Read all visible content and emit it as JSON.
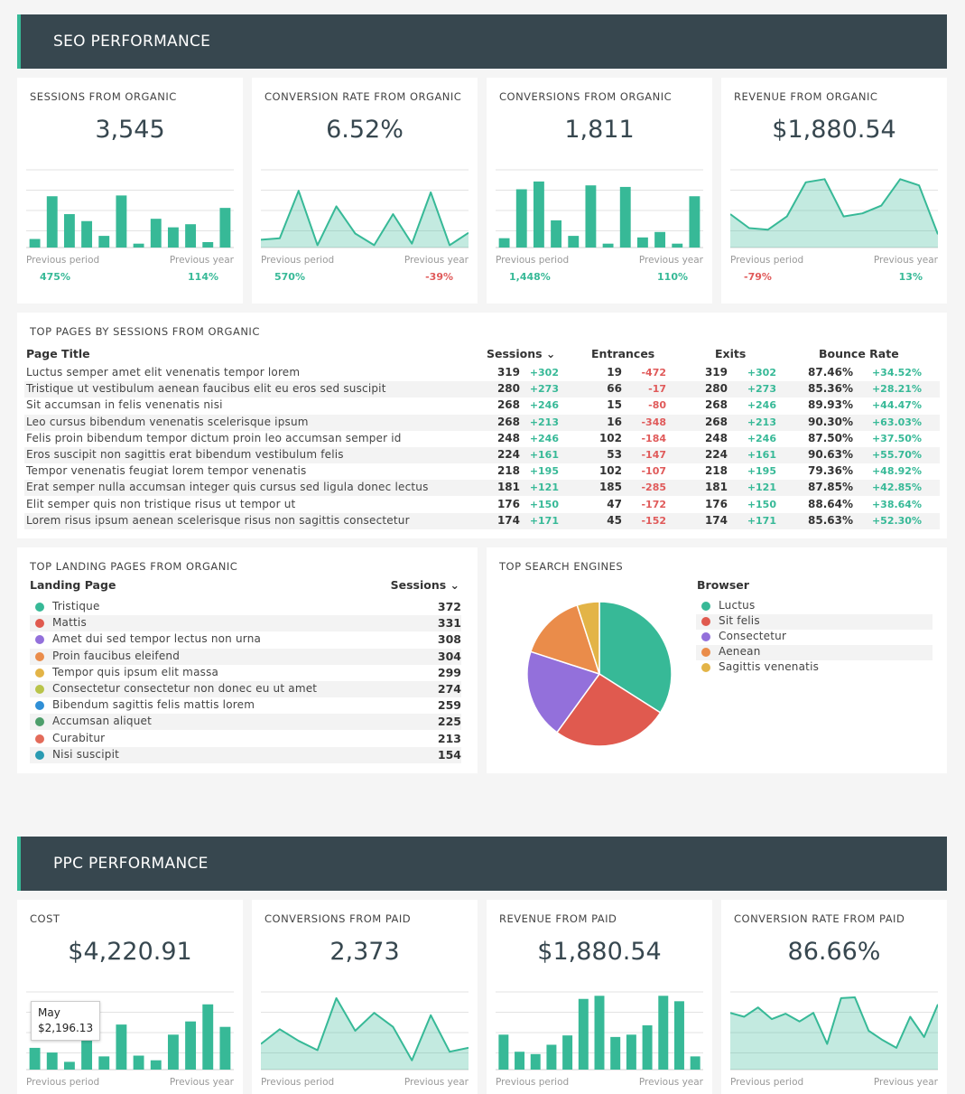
{
  "seo": {
    "header": "SEO PERFORMANCE",
    "kpis": [
      {
        "title": "SESSIONS FROM ORGANIC",
        "value": "3,545",
        "chart": "bar",
        "values": [
          11,
          66,
          43,
          34,
          15,
          67,
          5,
          37,
          26,
          30,
          7,
          51
        ],
        "foot_left": "Previous period",
        "foot_right": "Previous year",
        "pct_left": "475%",
        "pct_right": "114%",
        "pct_left_color": "#37b997",
        "pct_right_color": "#37b997"
      },
      {
        "title": "CONVERSION RATE FROM ORGANIC",
        "value": "6.52%",
        "chart": "area",
        "values": [
          10,
          12,
          73,
          3,
          53,
          18,
          3,
          43,
          5,
          71,
          3,
          19
        ],
        "foot_left": "Previous period",
        "foot_right": "Previous year",
        "pct_left": "570%",
        "pct_right": "-39%",
        "pct_left_color": "#37b997",
        "pct_right_color": "#e05a5a"
      },
      {
        "title": "CONVERSIONS FROM ORGANIC",
        "value": "1,811",
        "chart": "bar",
        "values": [
          12,
          75,
          85,
          35,
          15,
          80,
          5,
          78,
          13,
          20,
          5,
          66
        ],
        "foot_left": "Previous period",
        "foot_right": "Previous year",
        "pct_left": "1,448%",
        "pct_right": "110%",
        "pct_left_color": "#37b997",
        "pct_right_color": "#37b997"
      },
      {
        "title": "REVENUE FROM ORGANIC",
        "value": "$1,880.54",
        "chart": "area",
        "values": [
          43,
          25,
          23,
          40,
          84,
          88,
          40,
          44,
          54,
          88,
          80,
          17
        ],
        "foot_left": "Previous period",
        "foot_right": "Previous year",
        "pct_left": "-79%",
        "pct_right": "13%",
        "pct_left_color": "#e05a5a",
        "pct_right_color": "#37b997"
      }
    ],
    "top_pages": {
      "title": "TOP PAGES BY SESSIONS FROM ORGANIC",
      "columns": [
        "Page Title",
        "Sessions ⌄",
        "Entrances",
        "Exits",
        "Bounce Rate"
      ],
      "rows": [
        [
          "Luctus semper amet elit venenatis tempor lorem",
          "319",
          "+302",
          "19",
          "-472",
          "319",
          "+302",
          "87.46%",
          "+34.52%"
        ],
        [
          "Tristique ut vestibulum aenean faucibus elit eu eros sed suscipit",
          "280",
          "+273",
          "66",
          "-17",
          "280",
          "+273",
          "85.36%",
          "+28.21%"
        ],
        [
          "Sit accumsan in felis venenatis nisi",
          "268",
          "+246",
          "15",
          "-80",
          "268",
          "+246",
          "89.93%",
          "+44.47%"
        ],
        [
          "Leo cursus bibendum venenatis scelerisque ipsum",
          "268",
          "+213",
          "16",
          "-348",
          "268",
          "+213",
          "90.30%",
          "+63.03%"
        ],
        [
          "Felis proin bibendum tempor dictum proin leo accumsan semper id",
          "248",
          "+246",
          "102",
          "-184",
          "248",
          "+246",
          "87.50%",
          "+37.50%"
        ],
        [
          "Eros suscipit non sagittis erat bibendum vestibulum felis",
          "224",
          "+161",
          "53",
          "-147",
          "224",
          "+161",
          "90.63%",
          "+55.70%"
        ],
        [
          "Tempor venenatis feugiat lorem tempor venenatis",
          "218",
          "+195",
          "102",
          "-107",
          "218",
          "+195",
          "79.36%",
          "+48.92%"
        ],
        [
          "Erat semper nulla accumsan integer quis cursus sed ligula donec lectus",
          "181",
          "+121",
          "185",
          "-285",
          "181",
          "+121",
          "87.85%",
          "+42.85%"
        ],
        [
          "Elit semper quis non tristique risus ut tempor ut",
          "176",
          "+150",
          "47",
          "-172",
          "176",
          "+150",
          "88.64%",
          "+38.64%"
        ],
        [
          "Lorem risus ipsum aenean scelerisque risus non sagittis consectetur",
          "174",
          "+171",
          "45",
          "-152",
          "174",
          "+171",
          "85.63%",
          "+52.30%"
        ]
      ]
    },
    "landing": {
      "title": "TOP LANDING PAGES FROM ORGANIC",
      "col_label": "Landing Page",
      "col_value": "Sessions ⌄",
      "rows": [
        {
          "label": "Tristique",
          "value": "372",
          "color": "#37b997"
        },
        {
          "label": "Mattis",
          "value": "331",
          "color": "#e05a4f"
        },
        {
          "label": "Amet dui sed tempor lectus non urna",
          "value": "308",
          "color": "#9370db"
        },
        {
          "label": "Proin faucibus eleifend",
          "value": "304",
          "color": "#ea8c4a"
        },
        {
          "label": "Tempor quis ipsum elit massa",
          "value": "299",
          "color": "#e3b447"
        },
        {
          "label": "Consectetur consectetur non donec eu ut amet",
          "value": "274",
          "color": "#b9c44a"
        },
        {
          "label": "Bibendum sagittis felis mattis lorem",
          "value": "259",
          "color": "#2f8fd6"
        },
        {
          "label": "Accumsan aliquet",
          "value": "225",
          "color": "#4d9e6b"
        },
        {
          "label": "Curabitur",
          "value": "213",
          "color": "#e36b5a"
        },
        {
          "label": "Nisi suscipit",
          "value": "154",
          "color": "#2a9bb2"
        }
      ]
    },
    "engines": {
      "title": "TOP SEARCH ENGINES",
      "legend_title": "Browser",
      "slices": [
        {
          "label": "Luctus",
          "value": 34,
          "color": "#37b997"
        },
        {
          "label": "Sit felis",
          "value": 26,
          "color": "#e05a4f"
        },
        {
          "label": "Consectetur",
          "value": 20,
          "color": "#9370db"
        },
        {
          "label": "Aenean",
          "value": 15,
          "color": "#ea8c4a"
        },
        {
          "label": "Sagittis venenatis",
          "value": 5,
          "color": "#e3b447"
        }
      ]
    }
  },
  "ppc": {
    "header": "PPC PERFORMANCE",
    "kpis": [
      {
        "title": "COST",
        "value": "$4,220.91",
        "chart": "bar",
        "values": [
          28,
          22,
          10,
          40,
          17,
          58,
          18,
          12,
          45,
          62,
          84,
          55
        ],
        "foot_left": "Previous period",
        "foot_right": "Previous year",
        "tooltip_label": "May",
        "tooltip_value": "$2,196.13"
      },
      {
        "title": "CONVERSIONS FROM PAID",
        "value": "2,373",
        "chart": "area",
        "values": [
          33,
          52,
          37,
          25,
          92,
          50,
          73,
          55,
          12,
          70,
          23,
          28
        ],
        "foot_left": "Previous period",
        "foot_right": "Previous year"
      },
      {
        "title": "REVENUE FROM PAID",
        "value": "$1,880.54",
        "chart": "bar",
        "values": [
          45,
          23,
          20,
          32,
          44,
          91,
          95,
          42,
          45,
          57,
          95,
          88,
          17
        ],
        "foot_left": "Previous period",
        "foot_right": "Previous year"
      },
      {
        "title": "CONVERSION RATE FROM PAID",
        "value": "86.66%",
        "chart": "area",
        "values": [
          73,
          68,
          80,
          65,
          72,
          62,
          73,
          33,
          92,
          93,
          50,
          38,
          28,
          68,
          42,
          84
        ],
        "foot_left": "Previous period",
        "foot_right": "Previous year"
      }
    ]
  }
}
